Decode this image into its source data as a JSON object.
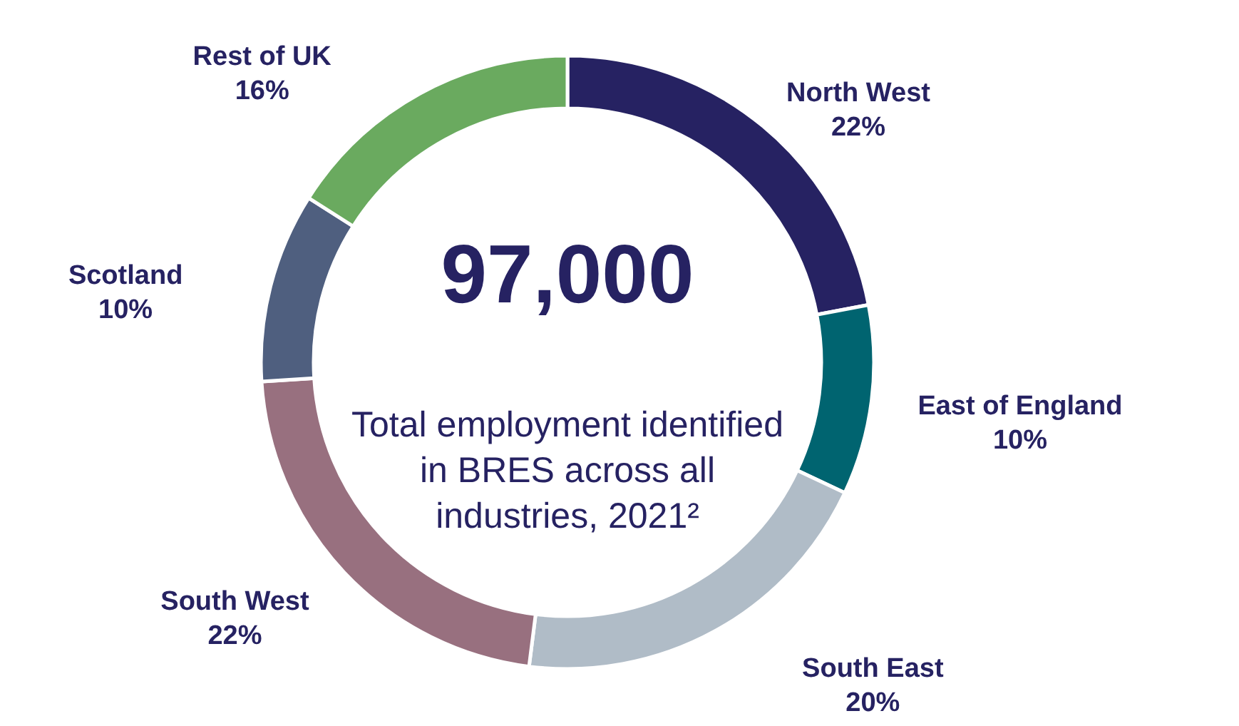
{
  "chart_data": {
    "type": "donut",
    "categories": [
      "North West",
      "East of England",
      "South East",
      "South West",
      "Scotland",
      "Rest of UK"
    ],
    "values": [
      22,
      10,
      20,
      22,
      10,
      16
    ],
    "value_labels": [
      "22%",
      "10%",
      "20%",
      "22%",
      "10%",
      "16%"
    ],
    "colors": [
      "#262262",
      "#006470",
      "#b0bcc7",
      "#98707f",
      "#4f5f7f",
      "#6aaa5f"
    ],
    "annotations": [
      "97,000",
      "Total employment identified in BRES across all industries, 2021²"
    ]
  }
}
